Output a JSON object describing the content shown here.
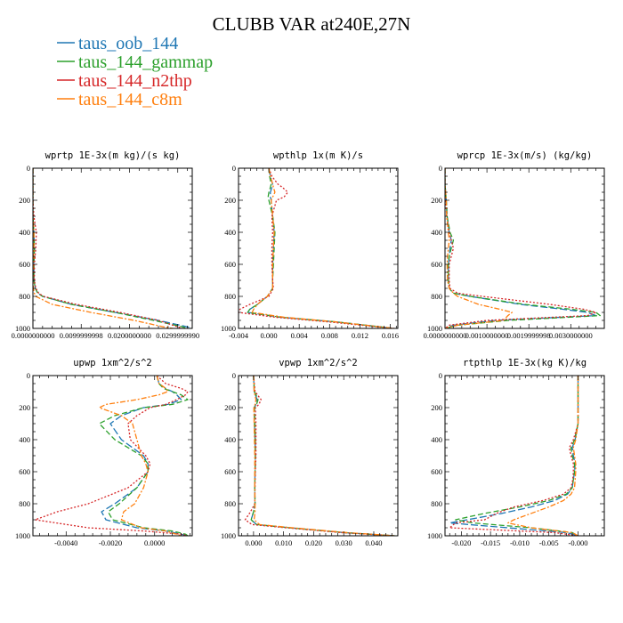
{
  "figure": {
    "title": "CLUBB VAR at240E,27N"
  },
  "colors": {
    "taus_oob_144": "#1f77b4",
    "taus_144_gammap": "#2ca02c",
    "taus_144_n2thp": "#d62728",
    "taus_144_c8m": "#ff7f0e"
  },
  "legend": [
    {
      "label": "taus_oob_144",
      "color": "#1f77b4"
    },
    {
      "label": "taus_144_gammap",
      "color": "#2ca02c"
    },
    {
      "label": "taus_144_n2thp",
      "color": "#d62728"
    },
    {
      "label": "taus_144_c8m",
      "color": "#ff7f0e"
    }
  ],
  "chart_data": [
    {
      "type": "line",
      "title": "wprtp  1E-3x(m kg)/(s kg)",
      "xlim": [
        0,
        0.033
      ],
      "ylim": [
        1000,
        0
      ],
      "xticks": [
        0,
        0.01,
        0.02,
        0.03
      ],
      "xtick_labels": [
        "0.0000000000",
        "0.0099999998",
        "0.0200000000",
        "0.0299999990"
      ],
      "yticks": [
        0,
        200,
        400,
        600,
        800,
        1000
      ],
      "y": [
        0,
        100,
        200,
        300,
        400,
        500,
        600,
        700,
        750,
        780,
        800,
        850,
        900,
        950,
        990,
        1000
      ],
      "series": [
        {
          "name": "taus_oob_144",
          "values": [
            0,
            0,
            0,
            0,
            0.0002,
            0.0003,
            0.0002,
            0.0002,
            0.0005,
            0.001,
            0.002,
            0.008,
            0.017,
            0.026,
            0.032,
            0.033
          ]
        },
        {
          "name": "taus_144_gammap",
          "values": [
            0,
            0,
            0,
            0,
            0.0002,
            0.0003,
            0.0002,
            0.0002,
            0.0005,
            0.001,
            0.002,
            0.008,
            0.017,
            0.025,
            0.031,
            0.032
          ]
        },
        {
          "name": "taus_144_n2thp",
          "values": [
            0,
            0,
            0,
            0.0002,
            0.0007,
            0.0006,
            0.0003,
            0.0003,
            0.0006,
            0.0012,
            0.0022,
            0.009,
            0.018,
            0.026,
            0.03,
            0.031
          ]
        },
        {
          "name": "taus_144_c8m",
          "values": [
            0,
            0,
            0,
            0,
            0.0002,
            0.0002,
            0.0001,
            0,
            0.0001,
            0.0003,
            0.0006,
            0.004,
            0.012,
            0.021,
            0.027,
            0.029
          ]
        }
      ]
    },
    {
      "type": "line",
      "title": "wpthlp  1x(m K)/s",
      "xlim": [
        -0.004,
        0.017
      ],
      "ylim": [
        1000,
        0
      ],
      "xticks": [
        -0.004,
        0,
        0.004,
        0.008,
        0.012,
        0.016
      ],
      "xtick_labels": [
        "-0.004",
        "0.000",
        "0.004",
        "0.008",
        "0.012",
        "0.016"
      ],
      "yticks": [
        0,
        200,
        400,
        600,
        800,
        1000
      ],
      "y": [
        0,
        50,
        100,
        120,
        150,
        180,
        200,
        300,
        400,
        500,
        600,
        700,
        750,
        800,
        850,
        880,
        900,
        930,
        960,
        1000
      ],
      "series": [
        {
          "name": "taus_oob_144",
          "values": [
            0,
            0.0002,
            0.0005,
            0.0004,
            0.0002,
            0.0002,
            0.0003,
            0.0005,
            0.0007,
            0.0006,
            0.0005,
            0.0005,
            0.0005,
            -0.0002,
            -0.0015,
            -0.0025,
            -0.0028,
            0.0015,
            0.009,
            0.0165
          ]
        },
        {
          "name": "taus_144_gammap",
          "values": [
            0,
            0.0001,
            0.0003,
            0.0002,
            0,
            -0.0001,
            0,
            0.0005,
            0.0008,
            0.0007,
            0.0006,
            0.0005,
            0.0005,
            -0.0002,
            -0.0015,
            -0.0025,
            -0.0028,
            0.0015,
            0.009,
            0.0165
          ]
        },
        {
          "name": "taus_144_n2thp",
          "values": [
            0,
            0.0004,
            0.0012,
            0.0018,
            0.0025,
            0.002,
            0.001,
            0.0004,
            0.0005,
            0.0004,
            0.0004,
            0.0005,
            0.0006,
            0,
            -0.0025,
            -0.0038,
            -0.004,
            0.0008,
            0.008,
            0.0165
          ]
        },
        {
          "name": "taus_144_c8m",
          "values": [
            0,
            0.0002,
            0.0005,
            0.0006,
            0.0008,
            0.0005,
            0.0003,
            0.0005,
            0.0007,
            0.0006,
            0.0005,
            0.0005,
            0.0005,
            -0.0002,
            -0.0015,
            -0.002,
            -0.0022,
            0.002,
            0.009,
            0.0165
          ]
        }
      ]
    },
    {
      "type": "line",
      "title": "wprcp  1E-3x(m/s) (kg/kg)",
      "xlim": [
        0,
        0.0038
      ],
      "ylim": [
        1000,
        0
      ],
      "xticks": [
        0,
        0.001,
        0.002,
        0.003
      ],
      "xtick_labels": [
        "0.0000000000",
        "0.0010000000",
        "0.0019999998",
        "0.0030000000"
      ],
      "yticks": [
        0,
        200,
        400,
        600,
        800,
        1000
      ],
      "y": [
        0,
        100,
        200,
        300,
        400,
        450,
        500,
        550,
        600,
        700,
        750,
        780,
        800,
        850,
        880,
        900,
        920,
        950,
        980,
        1000
      ],
      "series": [
        {
          "name": "taus_oob_144",
          "values": [
            0,
            0,
            3e-05,
            5e-05,
            0.0001,
            0.00015,
            0.00012,
            0.0001,
            8e-05,
            8e-05,
            0.0001,
            0.0002,
            0.0006,
            0.0018,
            0.0028,
            0.0034,
            0.0036,
            0.0012,
            0.0002,
            0
          ]
        },
        {
          "name": "taus_144_gammap",
          "values": [
            0,
            0,
            3e-05,
            5e-05,
            0.00012,
            0.0002,
            0.00015,
            0.0001,
            8e-05,
            8e-05,
            0.0001,
            0.0002,
            0.0006,
            0.0019,
            0.003,
            0.0036,
            0.0037,
            0.0015,
            0.0003,
            0
          ]
        },
        {
          "name": "taus_144_n2thp",
          "values": [
            0,
            0,
            2e-05,
            4e-05,
            0.0001,
            0.00015,
            0.0002,
            0.00015,
            0.0001,
            0.0001,
            0.00012,
            0.0003,
            0.0009,
            0.0025,
            0.0033,
            0.0036,
            0.0034,
            0.001,
            0.0001,
            0
          ]
        },
        {
          "name": "taus_144_c8m",
          "values": [
            0,
            0,
            3e-05,
            4e-05,
            8e-05,
            0.0001,
            8e-05,
            6e-05,
            5e-05,
            6e-05,
            0.0001,
            0.0002,
            0.0003,
            0.0008,
            0.0013,
            0.0016,
            0.0015,
            0.0014,
            0.0003,
            0
          ]
        }
      ]
    },
    {
      "type": "line",
      "title": "upwp  1xm^2/s^2",
      "xlim": [
        -0.0055,
        0.0017
      ],
      "ylim": [
        1000,
        0
      ],
      "xticks": [
        -0.004,
        -0.002,
        0
      ],
      "xtick_labels": [
        "-0.0040",
        "-0.0020",
        "0.0000"
      ],
      "yticks": [
        0,
        200,
        400,
        600,
        800,
        1000
      ],
      "y": [
        0,
        50,
        80,
        100,
        120,
        150,
        180,
        200,
        250,
        300,
        400,
        500,
        550,
        600,
        700,
        800,
        850,
        900,
        950,
        970,
        990,
        1000
      ],
      "series": [
        {
          "name": "taus_oob_144",
          "values": [
            0.0001,
            0.0002,
            0.0005,
            0.0008,
            0.001,
            0.0012,
            0.0006,
            -0.0005,
            -0.0015,
            -0.002,
            -0.0015,
            -0.0005,
            -0.0003,
            -0.0003,
            -0.0008,
            -0.0018,
            -0.0024,
            -0.0022,
            -0.0008,
            0.0005,
            0.0012,
            0.0015
          ]
        },
        {
          "name": "taus_144_gammap",
          "values": [
            0.0001,
            0.0002,
            0.0004,
            0.0008,
            0.0012,
            0.0015,
            0.0008,
            -0.0005,
            -0.0018,
            -0.0025,
            -0.0018,
            -0.0006,
            -0.0003,
            -0.0003,
            -0.0008,
            -0.0016,
            -0.0021,
            -0.0019,
            -0.0005,
            0.0008,
            0.0014,
            0.0015
          ]
        },
        {
          "name": "taus_144_n2thp",
          "values": [
            0.0001,
            0.0005,
            0.0012,
            0.0015,
            0.0014,
            0.001,
            0.0005,
            -0.0002,
            -0.0008,
            -0.0012,
            -0.0011,
            -0.0004,
            -0.0002,
            -0.0003,
            -0.0012,
            -0.003,
            -0.0044,
            -0.0054,
            -0.003,
            -0.0005,
            0.0012,
            0.0015
          ]
        },
        {
          "name": "taus_144_c8m",
          "values": [
            0.0001,
            0.0002,
            0.0005,
            0.0006,
            0.0002,
            -0.0008,
            -0.0022,
            -0.0025,
            -0.0015,
            -0.001,
            -0.0008,
            -0.0006,
            -0.0004,
            -0.0003,
            -0.0005,
            -0.0009,
            -0.0014,
            -0.0015,
            -0.0006,
            0.0005,
            0.001,
            0.0012
          ]
        }
      ]
    },
    {
      "type": "line",
      "title": "vpwp  1xm^2/s^2",
      "xlim": [
        -0.005,
        0.048
      ],
      "ylim": [
        1000,
        0
      ],
      "xticks": [
        0,
        0.01,
        0.02,
        0.03,
        0.04
      ],
      "xtick_labels": [
        "0.000",
        "0.010",
        "0.020",
        "0.030",
        "0.040"
      ],
      "yticks": [
        0,
        200,
        400,
        600,
        800,
        1000
      ],
      "y": [
        0,
        100,
        150,
        180,
        200,
        300,
        400,
        500,
        600,
        700,
        800,
        850,
        900,
        930,
        950,
        980,
        1000
      ],
      "series": [
        {
          "name": "taus_oob_144",
          "values": [
            0,
            0.0002,
            0.0012,
            0.0008,
            0.0002,
            0.0003,
            0.0005,
            0.0006,
            0.0005,
            0.0004,
            0.0005,
            0,
            -0.0008,
            0.001,
            0.012,
            0.03,
            0.047
          ]
        },
        {
          "name": "taus_144_gammap",
          "values": [
            0,
            0.0003,
            0.0015,
            0.001,
            0.0003,
            0.0004,
            0.0006,
            0.0006,
            0.0005,
            0.0004,
            0.0005,
            0,
            -0.0008,
            0.001,
            0.012,
            0.03,
            0.047
          ]
        },
        {
          "name": "taus_144_n2thp",
          "values": [
            0,
            0.0005,
            0.0025,
            0.0018,
            0.0006,
            0.0008,
            0.0008,
            0.0008,
            0.0006,
            0.0005,
            0.0004,
            -0.001,
            -0.0028,
            -0.0005,
            0.011,
            0.029,
            0.047
          ]
        },
        {
          "name": "taus_144_c8m",
          "values": [
            0,
            0.0002,
            0.0008,
            0.0005,
            0.0001,
            0.0002,
            0.0003,
            0.0004,
            0.0004,
            0.0004,
            0.0005,
            0.0005,
            0.0002,
            0.002,
            0.013,
            0.031,
            0.047
          ]
        }
      ]
    },
    {
      "type": "line",
      "title": "rtpthlp  1E-3x(kg K)/kg",
      "xlim": [
        -0.0228,
        0.0045
      ],
      "ylim": [
        1000,
        0
      ],
      "xticks": [
        -0.02,
        -0.015,
        -0.01,
        -0.005,
        0
      ],
      "xtick_labels": [
        "-0.020",
        "-0.015",
        "-0.010",
        "-0.005",
        "-0.000"
      ],
      "yticks": [
        0,
        200,
        400,
        600,
        800,
        1000
      ],
      "y": [
        0,
        100,
        200,
        300,
        400,
        450,
        500,
        550,
        600,
        650,
        700,
        740,
        780,
        820,
        860,
        900,
        920,
        950,
        980,
        1000
      ],
      "series": [
        {
          "name": "taus_oob_144",
          "values": [
            0,
            0,
            0,
            0,
            -0.0005,
            -0.001,
            -0.0008,
            -0.0005,
            -0.0006,
            -0.0008,
            -0.001,
            -0.0018,
            -0.004,
            -0.008,
            -0.013,
            -0.019,
            -0.022,
            -0.012,
            -0.002,
            0
          ]
        },
        {
          "name": "taus_144_gammap",
          "values": [
            0,
            0,
            0,
            0,
            -0.0006,
            -0.0012,
            -0.001,
            -0.0006,
            -0.0006,
            -0.0008,
            -0.001,
            -0.002,
            -0.005,
            -0.01,
            -0.016,
            -0.021,
            -0.018,
            -0.008,
            -0.001,
            0
          ]
        },
        {
          "name": "taus_144_n2thp",
          "values": [
            0,
            0,
            0,
            0,
            -0.0008,
            -0.0015,
            -0.0012,
            -0.0008,
            -0.0008,
            -0.0009,
            -0.0012,
            -0.0025,
            -0.006,
            -0.011,
            -0.014,
            -0.016,
            -0.021,
            -0.022,
            -0.004,
            0
          ]
        },
        {
          "name": "taus_144_c8m",
          "values": [
            0,
            0,
            0,
            0,
            -0.0004,
            -0.0008,
            -0.0006,
            -0.0004,
            -0.0004,
            -0.0005,
            -0.0006,
            -0.0012,
            -0.0025,
            -0.005,
            -0.008,
            -0.011,
            -0.012,
            -0.008,
            -0.001,
            0
          ]
        }
      ]
    }
  ]
}
